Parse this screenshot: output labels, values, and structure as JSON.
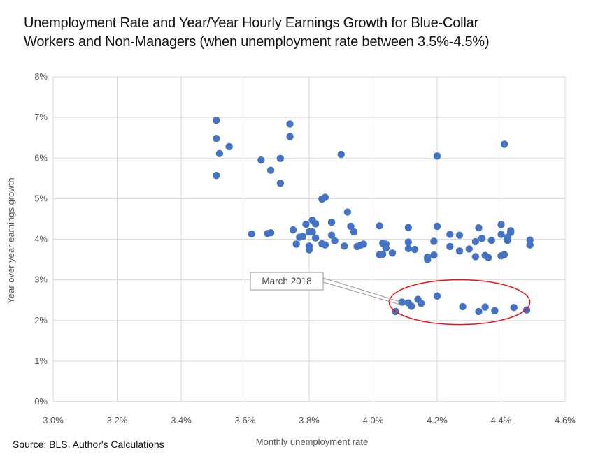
{
  "chart_data": {
    "type": "scatter",
    "title_line1": "Unemployment Rate and  Year/Year Hourly Earnings Growth for Blue-Collar",
    "title_line2": "Workers and Non-Managers (when unemployment rate between 3.5%-4.5%)",
    "xlabel": "Monthly unemployment rate",
    "ylabel": "Year over year earnings growth",
    "xlim": [
      3.0,
      4.6
    ],
    "ylim": [
      0,
      8
    ],
    "x_ticks": [
      "3.0%",
      "3.2%",
      "3.4%",
      "3.6%",
      "3.8%",
      "4.0%",
      "4.2%",
      "4.4%",
      "4.6%"
    ],
    "y_ticks": [
      "0%",
      "1%",
      "2%",
      "3%",
      "4%",
      "5%",
      "6%",
      "7%",
      "8%"
    ],
    "grid": true,
    "point_color": "#4472c4",
    "highlight_color": "#e8141c",
    "highlight_region": {
      "x_center": 4.27,
      "y_center": 2.45,
      "x_radius": 0.22,
      "y_radius": 0.55
    },
    "annotation": {
      "text": "March 2018",
      "x": 4.1,
      "y": 2.42
    },
    "source": "Source: BLS, Author's Calculations",
    "points": [
      [
        3.51,
        6.93
      ],
      [
        3.51,
        6.48
      ],
      [
        3.55,
        6.28
      ],
      [
        3.52,
        6.11
      ],
      [
        3.51,
        5.57
      ],
      [
        3.74,
        6.84
      ],
      [
        3.74,
        6.53
      ],
      [
        3.71,
        5.99
      ],
      [
        3.65,
        5.95
      ],
      [
        3.68,
        5.7
      ],
      [
        3.71,
        5.38
      ],
      [
        3.9,
        6.09
      ],
      [
        4.2,
        6.05
      ],
      [
        4.41,
        6.34
      ],
      [
        3.84,
        4.99
      ],
      [
        3.85,
        5.03
      ],
      [
        3.92,
        4.67
      ],
      [
        3.62,
        4.13
      ],
      [
        3.67,
        4.14
      ],
      [
        3.68,
        4.16
      ],
      [
        3.75,
        4.23
      ],
      [
        3.76,
        3.88
      ],
      [
        3.77,
        4.05
      ],
      [
        3.78,
        4.07
      ],
      [
        3.79,
        4.37
      ],
      [
        3.8,
        4.18
      ],
      [
        3.8,
        3.83
      ],
      [
        3.8,
        3.74
      ],
      [
        3.81,
        4.47
      ],
      [
        3.81,
        4.18
      ],
      [
        3.82,
        4.03
      ],
      [
        3.82,
        4.38
      ],
      [
        3.84,
        3.89
      ],
      [
        3.85,
        3.86
      ],
      [
        3.87,
        4.42
      ],
      [
        3.87,
        4.1
      ],
      [
        3.88,
        3.96
      ],
      [
        3.91,
        3.83
      ],
      [
        3.93,
        4.32
      ],
      [
        3.94,
        4.18
      ],
      [
        3.95,
        3.82
      ],
      [
        3.96,
        3.85
      ],
      [
        3.97,
        3.88
      ],
      [
        4.02,
        3.62
      ],
      [
        4.03,
        3.63
      ],
      [
        4.03,
        3.9
      ],
      [
        4.04,
        3.88
      ],
      [
        4.04,
        3.78
      ],
      [
        4.06,
        3.66
      ],
      [
        4.11,
        4.29
      ],
      [
        4.11,
        3.93
      ],
      [
        4.11,
        3.77
      ],
      [
        4.13,
        3.75
      ],
      [
        4.02,
        4.33
      ],
      [
        4.17,
        3.56
      ],
      [
        4.17,
        3.5
      ],
      [
        4.19,
        3.95
      ],
      [
        4.19,
        3.61
      ],
      [
        4.2,
        4.32
      ],
      [
        4.24,
        4.12
      ],
      [
        4.24,
        3.82
      ],
      [
        4.27,
        4.1
      ],
      [
        4.27,
        3.71
      ],
      [
        4.3,
        3.76
      ],
      [
        4.32,
        3.94
      ],
      [
        4.33,
        4.28
      ],
      [
        4.32,
        3.57
      ],
      [
        4.34,
        4.02
      ],
      [
        4.35,
        3.6
      ],
      [
        4.36,
        3.55
      ],
      [
        4.37,
        3.97
      ],
      [
        4.4,
        4.36
      ],
      [
        4.4,
        4.12
      ],
      [
        4.4,
        3.59
      ],
      [
        4.41,
        3.62
      ],
      [
        4.42,
        4.05
      ],
      [
        4.42,
        3.97
      ],
      [
        4.43,
        4.21
      ],
      [
        4.43,
        4.17
      ],
      [
        4.49,
        3.98
      ],
      [
        4.49,
        3.86
      ],
      [
        4.07,
        2.22
      ],
      [
        4.09,
        2.45
      ],
      [
        4.11,
        2.43
      ],
      [
        4.12,
        2.35
      ],
      [
        4.14,
        2.52
      ],
      [
        4.15,
        2.42
      ],
      [
        4.2,
        2.6
      ],
      [
        4.28,
        2.34
      ],
      [
        4.33,
        2.22
      ],
      [
        4.35,
        2.33
      ],
      [
        4.38,
        2.24
      ],
      [
        4.44,
        2.32
      ],
      [
        4.48,
        2.26
      ]
    ]
  }
}
